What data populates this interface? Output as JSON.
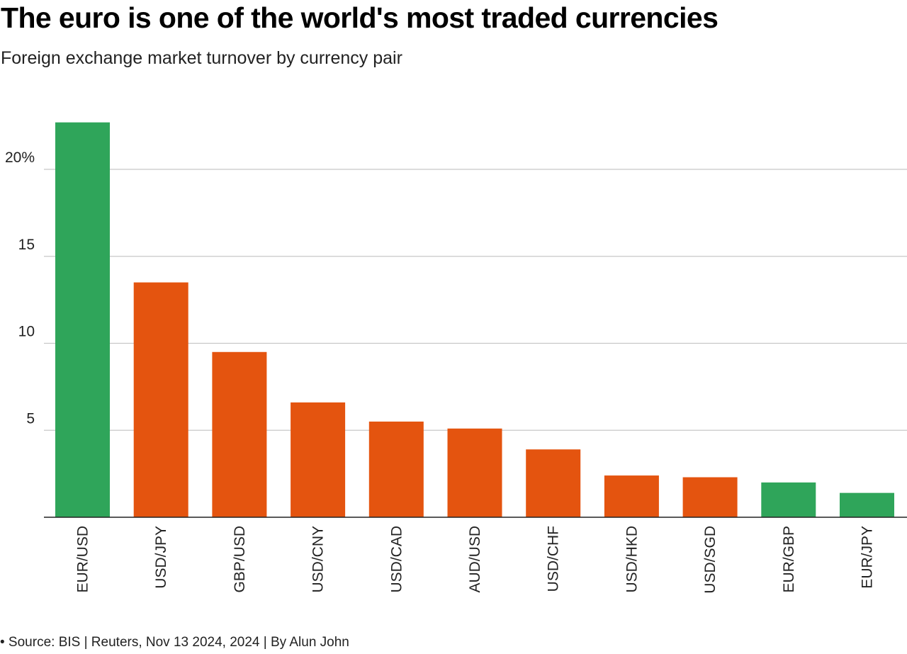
{
  "header": {
    "title": "The euro is one of the world's most traded currencies",
    "subtitle": "Foreign exchange market turnover by currency pair"
  },
  "footer": {
    "source": "• Source: BIS | Reuters, Nov 13 2024, 2024 | By Alun John"
  },
  "colors": {
    "euro": "#2fa55a",
    "other": "#e4540f",
    "grid": "#c8c8c8",
    "axis": "#222222"
  },
  "chart_data": {
    "type": "bar",
    "title": "The euro is one of the world's most traded currencies",
    "subtitle": "Foreign exchange market turnover by currency pair",
    "xlabel": "",
    "ylabel": "",
    "ylim": [
      0,
      23
    ],
    "yticks": [
      {
        "value": 5,
        "label": "5"
      },
      {
        "value": 10,
        "label": "10"
      },
      {
        "value": 15,
        "label": "15"
      },
      {
        "value": 20,
        "label": "20%"
      }
    ],
    "grid": true,
    "categories": [
      "EUR/USD",
      "USD/JPY",
      "GBP/USD",
      "USD/CNY",
      "USD/CAD",
      "AUD/USD",
      "USD/CHF",
      "USD/HKD",
      "USD/SGD",
      "EUR/GBP",
      "EUR/JPY"
    ],
    "values": [
      22.7,
      13.5,
      9.5,
      6.6,
      5.5,
      5.1,
      3.9,
      2.4,
      2.3,
      2.0,
      1.4
    ],
    "highlight": [
      "euro",
      "other",
      "other",
      "other",
      "other",
      "other",
      "other",
      "other",
      "other",
      "euro",
      "euro"
    ]
  }
}
